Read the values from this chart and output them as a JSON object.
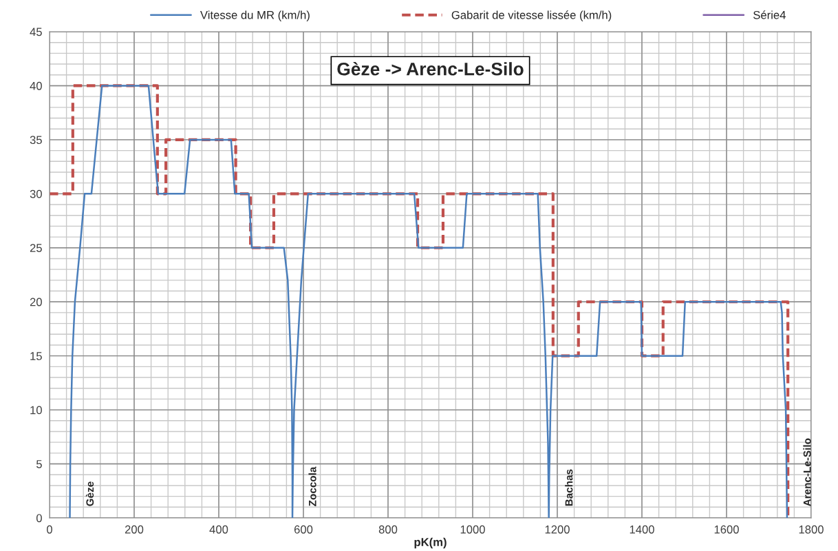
{
  "chart_data": {
    "type": "line",
    "title": "Gèze -> Arenc-Le-Silo",
    "xlabel": "pK(m)",
    "xlim": [
      0,
      1800
    ],
    "xticks": [
      0,
      200,
      400,
      600,
      800,
      1000,
      1200,
      1400,
      1600,
      1800
    ],
    "ylim": [
      0,
      45
    ],
    "yticks": [
      0,
      5,
      10,
      15,
      20,
      25,
      30,
      35,
      40,
      45
    ],
    "grid": true,
    "legend": "top",
    "marker": "none",
    "series": [
      {
        "name": "Vitesse du MR (km/h)",
        "color": "#4a7ebb",
        "line_style": "solid",
        "x": [
          48,
          49,
          51,
          54,
          60,
          72,
          83,
          99,
          124,
          234,
          252,
          257,
          319,
          332,
          429,
          438,
          471,
          478,
          554,
          563,
          570,
          573,
          574,
          574,
          575,
          578,
          585,
          595,
          611,
          862,
          872,
          977,
          986,
          1151,
          1154,
          1159,
          1167,
          1172,
          1178,
          1180,
          1181,
          1184,
          1189,
          1293,
          1301,
          1398,
          1400,
          1496,
          1502,
          1728,
          1731,
          1733,
          1740,
          1741,
          1743
        ],
        "values": [
          0,
          5,
          10,
          15,
          20,
          25,
          30,
          30,
          40,
          40,
          32,
          30,
          30,
          35,
          35,
          30,
          30,
          25,
          25,
          22,
          15,
          10,
          3.5,
          0,
          3.5,
          10,
          15,
          22,
          30,
          30,
          25,
          25,
          30,
          30,
          30,
          25,
          20,
          15,
          7,
          0,
          4,
          10,
          15,
          15,
          20,
          20,
          15,
          15,
          20,
          20,
          19,
          15,
          10,
          7,
          0
        ]
      },
      {
        "name": "Gabarit de vitesse lissée (km/h)",
        "color": "#c0504d",
        "line_style": "dashed",
        "x": [
          0,
          55,
          55,
          255,
          255,
          275,
          275,
          440,
          440,
          475,
          475,
          530,
          530,
          870,
          870,
          930,
          930,
          1190,
          1190,
          1250,
          1250,
          1400,
          1400,
          1450,
          1450,
          1745,
          1745
        ],
        "values": [
          30,
          30,
          40,
          40,
          30,
          30,
          35,
          35,
          30,
          30,
          25,
          25,
          30,
          30,
          25,
          25,
          30,
          30,
          15,
          15,
          20,
          20,
          15,
          15,
          20,
          20,
          0
        ]
      },
      {
        "name": "Série4",
        "color": "#7f5fa8",
        "line_style": "solid"
      }
    ],
    "annotations": [
      "Gèze",
      "Zoccola",
      "Bachas",
      "Arenc-Le-Silo"
    ]
  }
}
